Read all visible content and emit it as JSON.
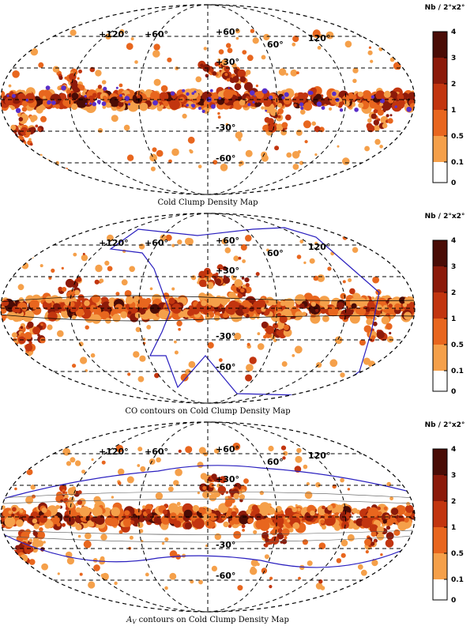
{
  "panels": [
    {
      "id": "density",
      "caption": "Cold Clump Density Map",
      "overlay": null,
      "grid_labels": [
        "+120°",
        "+60°",
        "+60°",
        "+30°",
        "60°",
        "120°",
        "-30°",
        "-60°"
      ]
    },
    {
      "id": "co",
      "caption": "CO contours on Cold Clump Density Map",
      "overlay": "co",
      "grid_labels": [
        "+120°",
        "+60°",
        "+60°",
        "+30°",
        "60°",
        "120°",
        "-30°",
        "-60°"
      ]
    },
    {
      "id": "av",
      "caption_prefix": "A",
      "caption_sub": "V",
      "caption": " contours on Cold Clump Density Map",
      "overlay": "av",
      "grid_labels": [
        "+120°",
        "+60°",
        "+60°",
        "+30°",
        "60°",
        "120°",
        "-30°",
        "-60°"
      ]
    }
  ],
  "colorbar": {
    "title": "Nb / 2°x2°",
    "ticks": [
      "0",
      "0.1",
      "0.5",
      "1",
      "2",
      "3",
      "4"
    ],
    "colors": [
      "#ffffff",
      "#f5a04a",
      "#e8661e",
      "#c2350f",
      "#8c1a0a",
      "#4a0c06",
      "#000000"
    ]
  },
  "colors": {
    "contour_blue": "#2a1fbf",
    "clump_light": "#f5a04a",
    "clump_mid": "#e8661e",
    "clump_dark": "#8c1a0a"
  }
}
